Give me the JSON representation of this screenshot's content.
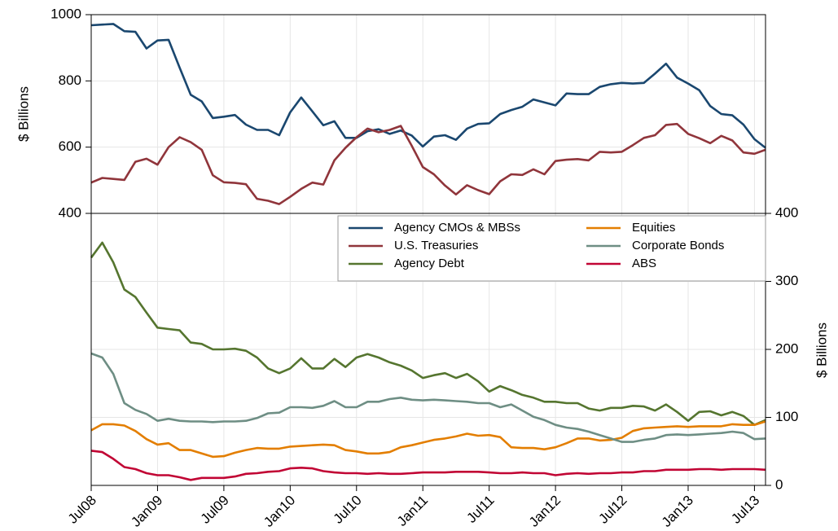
{
  "chart_data": [
    {
      "type": "line",
      "ylabel": "$ Billions",
      "ylim": [
        400,
        1000
      ],
      "yticks": [
        400,
        600,
        800,
        1000
      ],
      "grid": true,
      "series": [
        {
          "name": "Agency CMOs & MBSs",
          "color": "#1a476f",
          "values": [
            968,
            970,
            972,
            950,
            948,
            898,
            922,
            924,
            840,
            758,
            738,
            688,
            692,
            697,
            668,
            652,
            652,
            636,
            705,
            750,
            708,
            666,
            678,
            628,
            628,
            648,
            654,
            640,
            650,
            635,
            602,
            632,
            636,
            622,
            656,
            670,
            672,
            700,
            712,
            722,
            744,
            735,
            726,
            762,
            760,
            760,
            782,
            790,
            794,
            792,
            794,
            822,
            852,
            810,
            792,
            772,
            724,
            700,
            696,
            668,
            624,
            598
          ]
        },
        {
          "name": "U.S. Treasuries",
          "color": "#90353b",
          "values": [
            493,
            507,
            504,
            501,
            556,
            565,
            547,
            600,
            630,
            615,
            592,
            515,
            494,
            492,
            488,
            444,
            438,
            428,
            450,
            474,
            493,
            487,
            560,
            598,
            630,
            656,
            645,
            652,
            664,
            604,
            540,
            518,
            484,
            457,
            485,
            470,
            458,
            497,
            518,
            516,
            533,
            518,
            558,
            562,
            564,
            560,
            586,
            584,
            586,
            606,
            628,
            636,
            667,
            670,
            640,
            627,
            612,
            634,
            620,
            584,
            580,
            592
          ]
        }
      ]
    },
    {
      "type": "line",
      "ylabel": "$ Billions",
      "ylim": [
        0,
        400
      ],
      "yticks": [
        0,
        100,
        200,
        300,
        400
      ],
      "grid": true,
      "categories": [
        "Jul08",
        null,
        null,
        null,
        null,
        null,
        "Jan09",
        null,
        null,
        null,
        null,
        null,
        "Jul09",
        null,
        null,
        null,
        null,
        null,
        "Jan10",
        null,
        null,
        null,
        null,
        null,
        "Jul10",
        null,
        null,
        null,
        null,
        null,
        "Jan11",
        null,
        null,
        null,
        null,
        null,
        "Jul11",
        null,
        null,
        null,
        null,
        null,
        "Jan12",
        null,
        null,
        null,
        null,
        null,
        "Jul12",
        null,
        null,
        null,
        null,
        null,
        "Jan13",
        null,
        null,
        null,
        null,
        null,
        "Jul13",
        null
      ],
      "series": [
        {
          "name": "Agency Debt",
          "color": "#55752f",
          "values": [
            335,
            357,
            328,
            288,
            277,
            254,
            232,
            230,
            228,
            210,
            208,
            200,
            200,
            201,
            198,
            188,
            172,
            165,
            172,
            187,
            172,
            172,
            186,
            174,
            188,
            193,
            188,
            181,
            176,
            169,
            158,
            162,
            165,
            158,
            164,
            153,
            138,
            146,
            140,
            133,
            129,
            123,
            123,
            121,
            121,
            113,
            110,
            114,
            114,
            117,
            116,
            110,
            119,
            108,
            95,
            108,
            109,
            103,
            108,
            102,
            89,
            96
          ]
        },
        {
          "name": "Equities",
          "color": "#e37e00",
          "values": [
            81,
            90,
            90,
            88,
            80,
            68,
            60,
            62,
            52,
            52,
            47,
            42,
            43,
            48,
            52,
            55,
            54,
            54,
            57,
            58,
            59,
            60,
            59,
            52,
            50,
            47,
            47,
            49,
            56,
            59,
            63,
            67,
            69,
            72,
            76,
            73,
            74,
            71,
            56,
            55,
            55,
            53,
            56,
            62,
            69,
            69,
            66,
            67,
            70,
            80,
            84,
            85,
            86,
            87,
            86,
            87,
            87,
            87,
            90,
            89,
            89,
            94
          ]
        },
        {
          "name": "Corporate Bonds",
          "color": "#6e8e84",
          "values": [
            194,
            188,
            164,
            121,
            111,
            105,
            95,
            98,
            95,
            94,
            94,
            93,
            94,
            94,
            95,
            99,
            106,
            107,
            115,
            115,
            114,
            117,
            124,
            115,
            115,
            123,
            123,
            127,
            129,
            126,
            125,
            126,
            125,
            124,
            123,
            121,
            121,
            115,
            119,
            110,
            101,
            96,
            89,
            85,
            83,
            79,
            74,
            69,
            64,
            64,
            67,
            69,
            74,
            75,
            74,
            75,
            76,
            77,
            79,
            77,
            68,
            69
          ]
        },
        {
          "name": "ABS",
          "color": "#c10534",
          "values": [
            51,
            49,
            39,
            27,
            24,
            18,
            15,
            15,
            12,
            8,
            11,
            11,
            11,
            13,
            17,
            18,
            20,
            21,
            25,
            26,
            25,
            21,
            19,
            18,
            18,
            17,
            18,
            17,
            17,
            18,
            19,
            19,
            19,
            20,
            20,
            20,
            19,
            18,
            18,
            19,
            18,
            18,
            15,
            17,
            18,
            17,
            18,
            18,
            19,
            19,
            21,
            21,
            23,
            23,
            23,
            24,
            24,
            23,
            24,
            24,
            24,
            23
          ]
        }
      ]
    }
  ]
}
